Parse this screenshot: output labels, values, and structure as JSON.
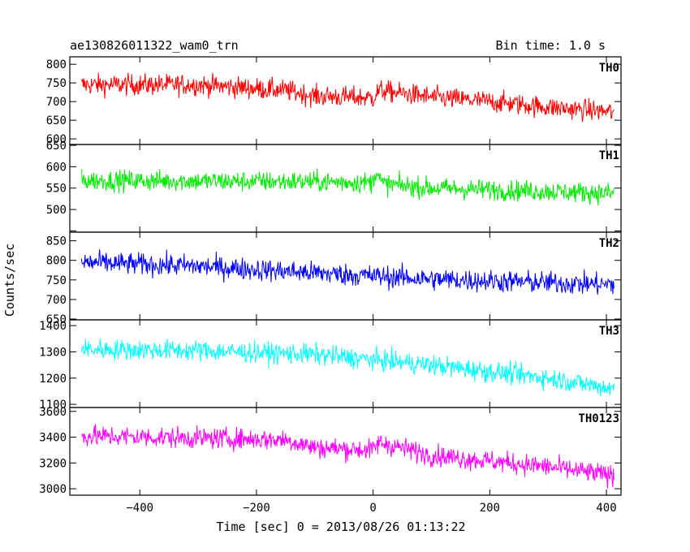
{
  "header": {
    "title": "ae130826011322_wam0_trn",
    "bin_time": "Bin time: 1.0 s"
  },
  "chart_data": {
    "type": "line",
    "title": "ae130826011322_wam0_trn",
    "subtitle": "Bin time: 1.0 s",
    "xlabel": "Time [sec] 0 = 2013/08/26 01:13:22",
    "ylabel": "Counts/sec",
    "xlim": [
      -520,
      425
    ],
    "x_range_data": [
      -500,
      413
    ],
    "x_ticks": [
      -400,
      -200,
      0,
      200,
      400
    ],
    "x_tick_labels": [
      "−400",
      "−200",
      "0",
      "200",
      "400"
    ],
    "grid": false,
    "panels": [
      {
        "name": "TH0",
        "color": "#ff0000",
        "ylim": [
          585,
          820
        ],
        "y_ticks": [
          600,
          650,
          700,
          750,
          800
        ],
        "y_tick_labels": [
          "600",
          "650",
          "700",
          "750",
          "800"
        ],
        "trend_x": [
          -500,
          -300,
          -150,
          -100,
          0,
          10,
          100,
          200,
          300,
          413
        ],
        "trend_y": [
          745,
          745,
          730,
          715,
          710,
          730,
          712,
          700,
          685,
          672
        ],
        "noise_amplitude": 26
      },
      {
        "name": "TH1",
        "color": "#00ee00",
        "ylim": [
          447,
          652
        ],
        "y_ticks": [
          450,
          500,
          550,
          600,
          650
        ],
        "y_tick_labels": [
          "",
          "500",
          "550",
          "600",
          "650"
        ],
        "trend_x": [
          -500,
          -100,
          0,
          5,
          15,
          100,
          413
        ],
        "trend_y": [
          568,
          565,
          563,
          595,
          560,
          550,
          538
        ],
        "noise_amplitude": 22
      },
      {
        "name": "TH2",
        "color": "#0000ff",
        "ylim": [
          648,
          872
        ],
        "y_ticks": [
          650,
          700,
          750,
          800,
          850
        ],
        "y_tick_labels": [
          "650",
          "700",
          "750",
          "800",
          "850"
        ],
        "trend_x": [
          -500,
          -300,
          -100,
          100,
          413
        ],
        "trend_y": [
          795,
          785,
          768,
          752,
          738
        ],
        "noise_amplitude": 26
      },
      {
        "name": "TH3",
        "color": "#00ffff",
        "ylim": [
          1088,
          1422
        ],
        "y_ticks": [
          1100,
          1200,
          1300,
          1400
        ],
        "y_tick_labels": [
          "1100",
          "1200",
          "1300",
          "1400"
        ],
        "trend_x": [
          -500,
          -300,
          -100,
          100,
          300,
          413
        ],
        "trend_y": [
          1310,
          1305,
          1290,
          1250,
          1200,
          1160
        ],
        "noise_amplitude": 36
      },
      {
        "name": "TH0123",
        "color": "#ff00ff",
        "ylim": [
          2950,
          3630
        ],
        "y_ticks": [
          3000,
          3200,
          3400,
          3600
        ],
        "y_tick_labels": [
          "3000",
          "3200",
          "3400",
          "3600"
        ],
        "trend_x": [
          -500,
          -150,
          -100,
          0,
          10,
          100,
          300,
          413
        ],
        "trend_y": [
          3410,
          3380,
          3320,
          3300,
          3360,
          3260,
          3170,
          3100
        ],
        "noise_amplitude": 75
      }
    ]
  }
}
